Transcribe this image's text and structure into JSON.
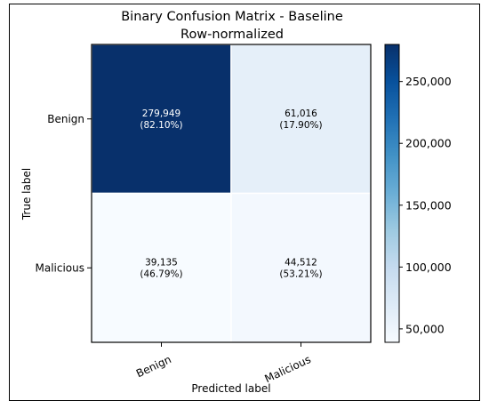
{
  "chart_data": {
    "type": "heatmap",
    "title": "Binary Confusion Matrix - Baseline",
    "subtitle": "Row-normalized",
    "xlabel": "Predicted label",
    "ylabel": "True label",
    "x_categories": [
      "Benign",
      "Malicious"
    ],
    "y_categories": [
      "Benign",
      "Malicious"
    ],
    "values": [
      [
        279949,
        61016
      ],
      [
        39135,
        44512
      ]
    ],
    "cell_labels": [
      [
        "279,949",
        "61,016"
      ],
      [
        "39,135",
        "44,512"
      ]
    ],
    "cell_percent_labels": [
      [
        "(82.10%)",
        "(17.90%)"
      ],
      [
        "(46.79%)",
        "(53.21%)"
      ]
    ],
    "colorbar": {
      "range": [
        39135,
        279949
      ],
      "ticks": [
        50000,
        100000,
        150000,
        200000,
        250000
      ],
      "tick_labels": [
        "50,000",
        "100,000",
        "150,000",
        "200,000",
        "250,000"
      ],
      "colormap": "Blues",
      "low_color": "#f7fbff",
      "high_color": "#08306b"
    }
  }
}
